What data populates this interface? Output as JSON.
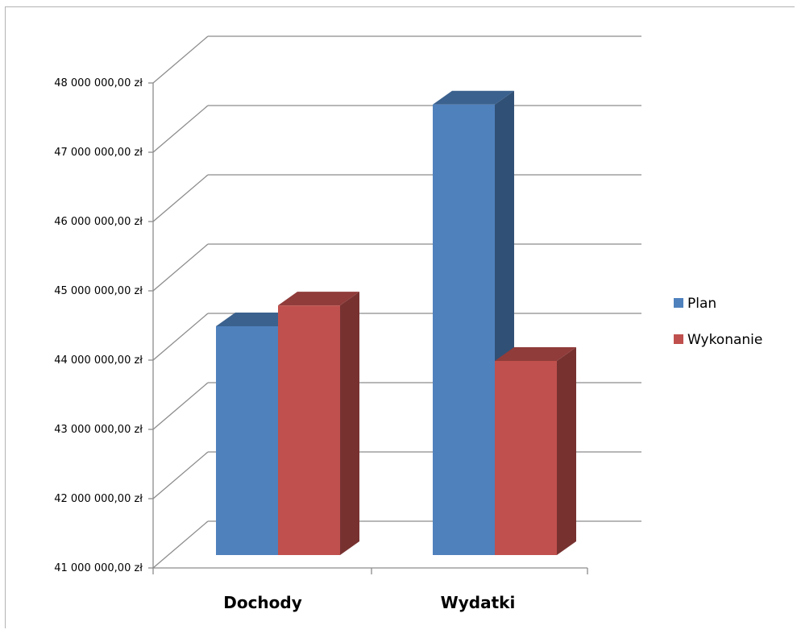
{
  "chart_data": {
    "type": "bar",
    "title": "",
    "xlabel": "",
    "ylabel": "",
    "categories": [
      "Dochody",
      "Wydatki"
    ],
    "series": [
      {
        "name": "Plan",
        "values": [
          44300000,
          47500000
        ],
        "color": "#4f81bd"
      },
      {
        "name": "Wykonanie",
        "values": [
          44600000,
          43800000
        ],
        "color": "#c0504d"
      }
    ],
    "ylim": [
      41000000,
      48000000
    ],
    "yticks": [
      {
        "value": 41000000,
        "label": "41 000 000,00 zł"
      },
      {
        "value": 42000000,
        "label": "42 000 000,00 zł"
      },
      {
        "value": 43000000,
        "label": "43 000 000,00 zł"
      },
      {
        "value": 44000000,
        "label": "44 000 000,00 zł"
      },
      {
        "value": 45000000,
        "label": "45 000 000,00 zł"
      },
      {
        "value": 46000000,
        "label": "46 000 000,00 zł"
      },
      {
        "value": 47000000,
        "label": "47 000 000,00 zł"
      },
      {
        "value": 48000000,
        "label": "48 000 000,00 zł"
      }
    ],
    "grid": true,
    "legend": "right",
    "style": "3d-clustered-column"
  }
}
